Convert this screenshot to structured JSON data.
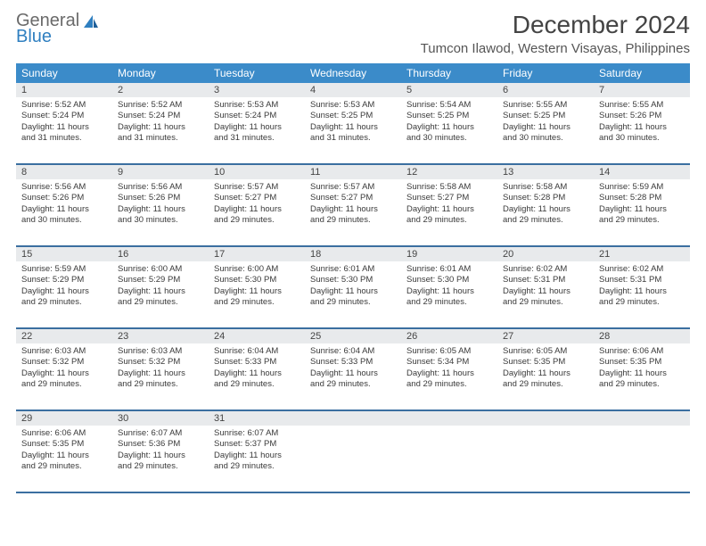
{
  "logo": {
    "text_general": "General",
    "text_blue": "Blue"
  },
  "title": "December 2024",
  "location": "Tumcon Ilawod, Western Visayas, Philippines",
  "day_headers": [
    "Sunday",
    "Monday",
    "Tuesday",
    "Wednesday",
    "Thursday",
    "Friday",
    "Saturday"
  ],
  "header_bg": "#3b8bc9",
  "date_row_bg": "#e8eaec",
  "divider_color": "#3b6fa0",
  "weeks": [
    {
      "dates": [
        "1",
        "2",
        "3",
        "4",
        "5",
        "6",
        "7"
      ],
      "cells": [
        {
          "sr": "Sunrise: 5:52 AM",
          "ss": "Sunset: 5:24 PM",
          "d1": "Daylight: 11 hours",
          "d2": "and 31 minutes."
        },
        {
          "sr": "Sunrise: 5:52 AM",
          "ss": "Sunset: 5:24 PM",
          "d1": "Daylight: 11 hours",
          "d2": "and 31 minutes."
        },
        {
          "sr": "Sunrise: 5:53 AM",
          "ss": "Sunset: 5:24 PM",
          "d1": "Daylight: 11 hours",
          "d2": "and 31 minutes."
        },
        {
          "sr": "Sunrise: 5:53 AM",
          "ss": "Sunset: 5:25 PM",
          "d1": "Daylight: 11 hours",
          "d2": "and 31 minutes."
        },
        {
          "sr": "Sunrise: 5:54 AM",
          "ss": "Sunset: 5:25 PM",
          "d1": "Daylight: 11 hours",
          "d2": "and 30 minutes."
        },
        {
          "sr": "Sunrise: 5:55 AM",
          "ss": "Sunset: 5:25 PM",
          "d1": "Daylight: 11 hours",
          "d2": "and 30 minutes."
        },
        {
          "sr": "Sunrise: 5:55 AM",
          "ss": "Sunset: 5:26 PM",
          "d1": "Daylight: 11 hours",
          "d2": "and 30 minutes."
        }
      ]
    },
    {
      "dates": [
        "8",
        "9",
        "10",
        "11",
        "12",
        "13",
        "14"
      ],
      "cells": [
        {
          "sr": "Sunrise: 5:56 AM",
          "ss": "Sunset: 5:26 PM",
          "d1": "Daylight: 11 hours",
          "d2": "and 30 minutes."
        },
        {
          "sr": "Sunrise: 5:56 AM",
          "ss": "Sunset: 5:26 PM",
          "d1": "Daylight: 11 hours",
          "d2": "and 30 minutes."
        },
        {
          "sr": "Sunrise: 5:57 AM",
          "ss": "Sunset: 5:27 PM",
          "d1": "Daylight: 11 hours",
          "d2": "and 29 minutes."
        },
        {
          "sr": "Sunrise: 5:57 AM",
          "ss": "Sunset: 5:27 PM",
          "d1": "Daylight: 11 hours",
          "d2": "and 29 minutes."
        },
        {
          "sr": "Sunrise: 5:58 AM",
          "ss": "Sunset: 5:27 PM",
          "d1": "Daylight: 11 hours",
          "d2": "and 29 minutes."
        },
        {
          "sr": "Sunrise: 5:58 AM",
          "ss": "Sunset: 5:28 PM",
          "d1": "Daylight: 11 hours",
          "d2": "and 29 minutes."
        },
        {
          "sr": "Sunrise: 5:59 AM",
          "ss": "Sunset: 5:28 PM",
          "d1": "Daylight: 11 hours",
          "d2": "and 29 minutes."
        }
      ]
    },
    {
      "dates": [
        "15",
        "16",
        "17",
        "18",
        "19",
        "20",
        "21"
      ],
      "cells": [
        {
          "sr": "Sunrise: 5:59 AM",
          "ss": "Sunset: 5:29 PM",
          "d1": "Daylight: 11 hours",
          "d2": "and 29 minutes."
        },
        {
          "sr": "Sunrise: 6:00 AM",
          "ss": "Sunset: 5:29 PM",
          "d1": "Daylight: 11 hours",
          "d2": "and 29 minutes."
        },
        {
          "sr": "Sunrise: 6:00 AM",
          "ss": "Sunset: 5:30 PM",
          "d1": "Daylight: 11 hours",
          "d2": "and 29 minutes."
        },
        {
          "sr": "Sunrise: 6:01 AM",
          "ss": "Sunset: 5:30 PM",
          "d1": "Daylight: 11 hours",
          "d2": "and 29 minutes."
        },
        {
          "sr": "Sunrise: 6:01 AM",
          "ss": "Sunset: 5:30 PM",
          "d1": "Daylight: 11 hours",
          "d2": "and 29 minutes."
        },
        {
          "sr": "Sunrise: 6:02 AM",
          "ss": "Sunset: 5:31 PM",
          "d1": "Daylight: 11 hours",
          "d2": "and 29 minutes."
        },
        {
          "sr": "Sunrise: 6:02 AM",
          "ss": "Sunset: 5:31 PM",
          "d1": "Daylight: 11 hours",
          "d2": "and 29 minutes."
        }
      ]
    },
    {
      "dates": [
        "22",
        "23",
        "24",
        "25",
        "26",
        "27",
        "28"
      ],
      "cells": [
        {
          "sr": "Sunrise: 6:03 AM",
          "ss": "Sunset: 5:32 PM",
          "d1": "Daylight: 11 hours",
          "d2": "and 29 minutes."
        },
        {
          "sr": "Sunrise: 6:03 AM",
          "ss": "Sunset: 5:32 PM",
          "d1": "Daylight: 11 hours",
          "d2": "and 29 minutes."
        },
        {
          "sr": "Sunrise: 6:04 AM",
          "ss": "Sunset: 5:33 PM",
          "d1": "Daylight: 11 hours",
          "d2": "and 29 minutes."
        },
        {
          "sr": "Sunrise: 6:04 AM",
          "ss": "Sunset: 5:33 PM",
          "d1": "Daylight: 11 hours",
          "d2": "and 29 minutes."
        },
        {
          "sr": "Sunrise: 6:05 AM",
          "ss": "Sunset: 5:34 PM",
          "d1": "Daylight: 11 hours",
          "d2": "and 29 minutes."
        },
        {
          "sr": "Sunrise: 6:05 AM",
          "ss": "Sunset: 5:35 PM",
          "d1": "Daylight: 11 hours",
          "d2": "and 29 minutes."
        },
        {
          "sr": "Sunrise: 6:06 AM",
          "ss": "Sunset: 5:35 PM",
          "d1": "Daylight: 11 hours",
          "d2": "and 29 minutes."
        }
      ]
    },
    {
      "dates": [
        "29",
        "30",
        "31",
        "",
        "",
        "",
        ""
      ],
      "cells": [
        {
          "sr": "Sunrise: 6:06 AM",
          "ss": "Sunset: 5:35 PM",
          "d1": "Daylight: 11 hours",
          "d2": "and 29 minutes."
        },
        {
          "sr": "Sunrise: 6:07 AM",
          "ss": "Sunset: 5:36 PM",
          "d1": "Daylight: 11 hours",
          "d2": "and 29 minutes."
        },
        {
          "sr": "Sunrise: 6:07 AM",
          "ss": "Sunset: 5:37 PM",
          "d1": "Daylight: 11 hours",
          "d2": "and 29 minutes."
        },
        null,
        null,
        null,
        null
      ]
    }
  ]
}
